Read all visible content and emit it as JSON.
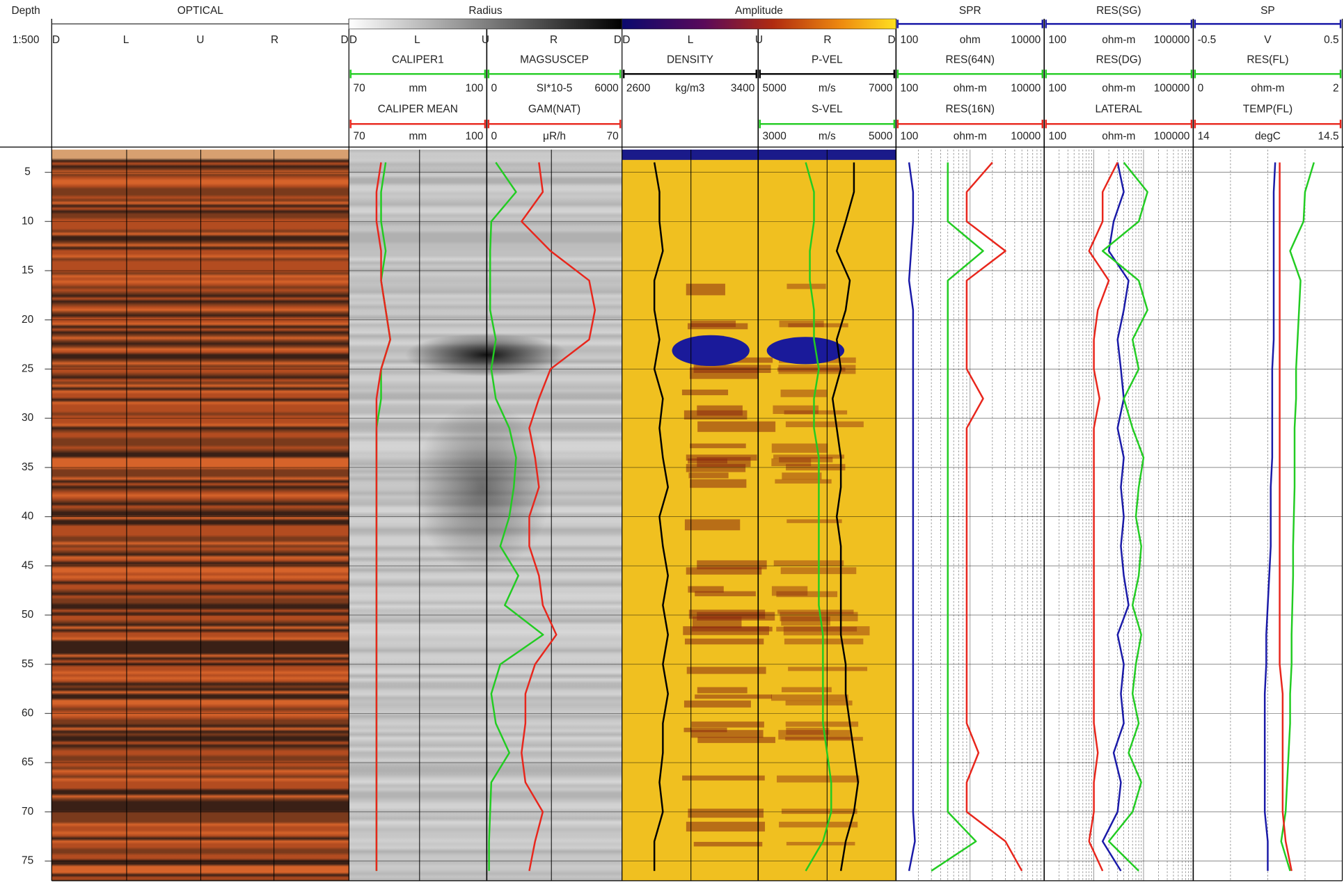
{
  "chart_data": {
    "type": "well-log",
    "depth_label": "Depth",
    "scale": "1:500",
    "ylim": [
      2.7,
      77
    ],
    "yticks": [
      5,
      10,
      15,
      20,
      25,
      30,
      35,
      40,
      45,
      50,
      55,
      60,
      65,
      70,
      75
    ],
    "images": [
      {
        "title": "OPTICAL",
        "labels": [
          "D",
          "L",
          "U",
          "R",
          "D"
        ]
      },
      {
        "title": "Radius",
        "labels": [
          "D",
          "L",
          "U",
          "R",
          "D"
        ]
      },
      {
        "title": "Amplitude",
        "labels": [
          "D",
          "L",
          "U",
          "R",
          "D"
        ]
      }
    ],
    "depth": [
      4,
      7,
      10,
      13,
      16,
      19,
      22,
      25,
      28,
      31,
      34,
      37,
      40,
      43,
      46,
      49,
      52,
      55,
      58,
      61,
      64,
      67,
      70,
      73,
      76
    ],
    "columns": [
      {
        "curves": [
          {
            "name": "CALIPER1",
            "color": "#22cc22",
            "unit": "mm",
            "xlim": [
              70,
              100
            ],
            "log": false,
            "values": [
              78,
              77,
              77,
              78,
              77,
              78,
              79,
              77,
              77,
              76,
              76,
              76,
              76,
              76,
              76,
              76,
              76,
              76,
              76,
              76,
              76,
              76,
              76,
              76,
              76
            ]
          },
          {
            "name": "CALIPER MEAN",
            "color": "#e8261c",
            "unit": "mm",
            "xlim": [
              70,
              100
            ],
            "log": false,
            "values": [
              77,
              76,
              76,
              77,
              77,
              78,
              79,
              77,
              76,
              76,
              76,
              76,
              76,
              76,
              76,
              76,
              76,
              76,
              76,
              76,
              76,
              76,
              76,
              76,
              76
            ]
          }
        ]
      },
      {
        "curves": [
          {
            "name": "MAGSUSCEP",
            "color": "#22cc22",
            "unit": "SI*10-5",
            "xlim": [
              0,
              6000
            ],
            "log": false,
            "values": [
              400,
              1300,
              200,
              150,
              150,
              150,
              400,
              200,
              400,
              1000,
              1300,
              1200,
              1000,
              600,
              1400,
              800,
              2500,
              600,
              200,
              400,
              1000,
              200,
              150,
              100,
              100
            ]
          },
          {
            "name": "GAM(NAT)",
            "color": "#e8261c",
            "unit": "μR/h",
            "xlim": [
              0,
              70
            ],
            "log": false,
            "values": [
              27,
              29,
              18,
              33,
              53,
              56,
              53,
              33,
              27,
              22,
              25,
              27,
              22,
              22,
              27,
              29,
              36,
              25,
              20,
              20,
              18,
              20,
              29,
              25,
              22
            ]
          }
        ]
      },
      {
        "curves": [
          {
            "name": "DENSITY",
            "color": "#000000",
            "unit": "kg/m3",
            "xlim": [
              2600,
              3400
            ],
            "log": false,
            "values": [
              2790,
              2820,
              2820,
              2840,
              2790,
              2790,
              2820,
              2790,
              2840,
              2820,
              2840,
              2870,
              2820,
              2840,
              2870,
              2840,
              2870,
              2840,
              2870,
              2840,
              2840,
              2820,
              2840,
              2790,
              2790
            ]
          }
        ]
      },
      {
        "curves": [
          {
            "name": "P-VEL",
            "color": "#000000",
            "unit": "m/s",
            "xlim": [
              5000,
              7000
            ],
            "log": false,
            "values": [
              6390,
              6390,
              6270,
              6140,
              6330,
              6270,
              6140,
              6200,
              6080,
              6140,
              6200,
              6200,
              6140,
              6200,
              6200,
              6200,
              6200,
              6270,
              6270,
              6330,
              6390,
              6450,
              6390,
              6270,
              6200
            ]
          },
          {
            "name": "S-VEL",
            "color": "#22cc22",
            "unit": "m/s",
            "xlim": [
              3000,
              5000
            ],
            "log": false,
            "values": [
              3690,
              3810,
              3810,
              3750,
              3750,
              3810,
              3810,
              3880,
              3810,
              3810,
              3880,
              3880,
              3880,
              3880,
              3880,
              3880,
              3940,
              3940,
              3940,
              3940,
              4000,
              4060,
              4060,
              3940,
              3690
            ]
          }
        ]
      },
      {
        "curves": [
          {
            "name": "SPR",
            "color": "#1a1aa8",
            "unit": "ohm",
            "xlim": [
              100,
              10000
            ],
            "log": true,
            "values": [
              150,
              170,
              170,
              160,
              150,
              170,
              170,
              170,
              170,
              170,
              170,
              170,
              170,
              170,
              170,
              170,
              170,
              170,
              170,
              170,
              170,
              170,
              170,
              180,
              150
            ]
          },
          {
            "name": "RES(64N)",
            "color": "#22cc22",
            "unit": "ohm-m",
            "xlim": [
              100,
              10000
            ],
            "log": true,
            "values": [
              500,
              500,
              500,
              1500,
              500,
              500,
              500,
              500,
              500,
              500,
              500,
              500,
              500,
              500,
              500,
              500,
              500,
              500,
              500,
              500,
              500,
              500,
              500,
              1200,
              300
            ]
          },
          {
            "name": "RES(16N)",
            "color": "#e8261c",
            "unit": "ohm-m",
            "xlim": [
              100,
              10000
            ],
            "log": true,
            "values": [
              2000,
              900,
              900,
              3000,
              900,
              900,
              900,
              900,
              1500,
              900,
              900,
              900,
              900,
              900,
              900,
              900,
              900,
              900,
              900,
              900,
              1300,
              900,
              900,
              3000,
              5000
            ]
          }
        ]
      },
      {
        "curves": [
          {
            "name": "RES(SG)",
            "color": "#1a1aa8",
            "unit": "ohm-m",
            "xlim": [
              100,
              100000
            ],
            "log": true,
            "values": [
              3000,
              4000,
              2500,
              2000,
              5000,
              4000,
              3000,
              3500,
              4000,
              3000,
              4000,
              3500,
              4000,
              3500,
              4000,
              5000,
              3000,
              4000,
              3500,
              4000,
              2500,
              3500,
              3000,
              1500,
              3500
            ]
          },
          {
            "name": "RES(DG)",
            "color": "#22cc22",
            "unit": "ohm-m",
            "xlim": [
              100,
              100000
            ],
            "log": true,
            "values": [
              4000,
              12000,
              8000,
              1500,
              8000,
              12000,
              6000,
              8000,
              4000,
              6000,
              10000,
              8000,
              7000,
              9000,
              8000,
              6000,
              9000,
              7000,
              6000,
              8000,
              5000,
              9000,
              6000,
              2000,
              8000
            ]
          },
          {
            "name": "LATERAL",
            "color": "#e8261c",
            "unit": "ohm-m",
            "xlim": [
              100,
              100000
            ],
            "log": true,
            "values": [
              3000,
              1500,
              1500,
              800,
              2000,
              1200,
              1000,
              1000,
              1300,
              1000,
              1000,
              1000,
              1000,
              1000,
              1000,
              1000,
              1000,
              1000,
              1000,
              1000,
              1200,
              1000,
              1000,
              800,
              1500
            ]
          }
        ]
      },
      {
        "curves": [
          {
            "name": "SP",
            "color": "#1a1aa8",
            "unit": "V",
            "xlim": [
              -0.5,
              0.5
            ],
            "log": false,
            "values": [
              0.05,
              0.04,
              0.04,
              0.04,
              0.04,
              0.04,
              0.04,
              0.03,
              0.03,
              0.03,
              0.03,
              0.02,
              0.02,
              0.02,
              0.01,
              0,
              -0.01,
              -0.01,
              -0.02,
              -0.02,
              -0.02,
              -0.02,
              -0.02,
              0,
              0
            ]
          },
          {
            "name": "RES(FL)",
            "color": "#22cc22",
            "unit": "ohm-m",
            "xlim": [
              0,
              2
            ],
            "log": false,
            "values": [
              1.62,
              1.5,
              1.48,
              1.3,
              1.44,
              1.42,
              1.4,
              1.38,
              1.38,
              1.36,
              1.36,
              1.36,
              1.35,
              1.34,
              1.34,
              1.33,
              1.32,
              1.32,
              1.3,
              1.3,
              1.28,
              1.26,
              1.24,
              1.18,
              1.3
            ]
          },
          {
            "name": "TEMP(FL)",
            "color": "#e8261c",
            "unit": "degC",
            "xlim": [
              14,
              14.5
            ],
            "log": false,
            "values": [
              14.29,
              14.29,
              14.29,
              14.29,
              14.29,
              14.29,
              14.29,
              14.29,
              14.29,
              14.29,
              14.29,
              14.29,
              14.29,
              14.29,
              14.29,
              14.29,
              14.29,
              14.29,
              14.3,
              14.3,
              14.3,
              14.3,
              14.3,
              14.31,
              14.33
            ]
          }
        ]
      }
    ]
  }
}
